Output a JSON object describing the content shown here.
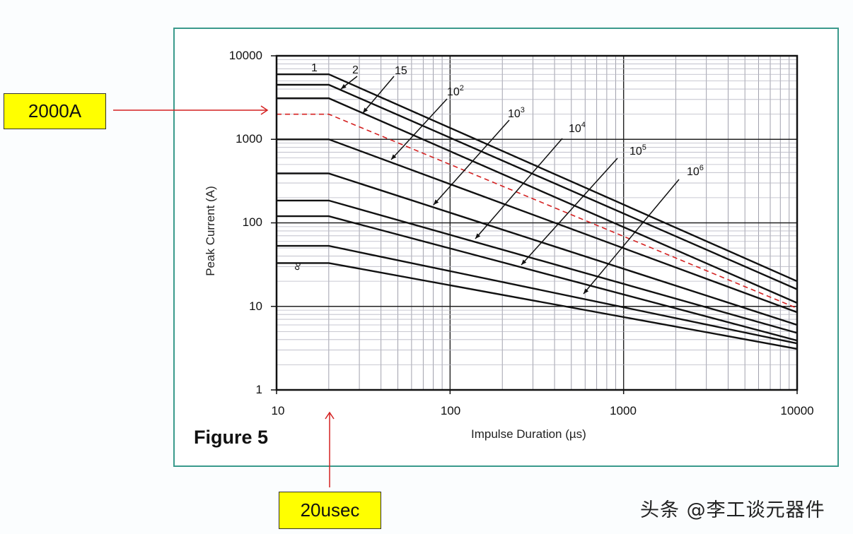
{
  "figure": {
    "label": "Figure 5",
    "x_axis_label": "Impulse Duration (µs)",
    "y_axis_label": "Peak Current (A)"
  },
  "callouts": {
    "current": "2000A",
    "duration": "20usec"
  },
  "watermark": "头条 @李工谈元器件",
  "colors": {
    "frame": "#3a9a8c",
    "callout_bg": "#ffff00",
    "arrow": "#d42020",
    "dashed_curve": "#d42020",
    "curves": "#111111"
  },
  "chart_data": {
    "type": "line",
    "title": "Figure 5",
    "xlabel": "Impulse Duration (µs)",
    "ylabel": "Peak Current (A)",
    "xscale": "log",
    "yscale": "log",
    "xlim": [
      10,
      10000
    ],
    "ylim": [
      1,
      10000
    ],
    "x_ticks": [
      "10",
      "100",
      "1000",
      "10000"
    ],
    "y_ticks": [
      "1",
      "10",
      "100",
      "1000",
      "10000"
    ],
    "grid": true,
    "knee_x": 20,
    "series": [
      {
        "name": "1",
        "points": [
          [
            10,
            6000
          ],
          [
            20,
            6000
          ],
          [
            10000,
            20
          ]
        ]
      },
      {
        "name": "2",
        "points": [
          [
            10,
            4500
          ],
          [
            20,
            4500
          ],
          [
            10000,
            16
          ]
        ]
      },
      {
        "name": "15",
        "points": [
          [
            10,
            3100
          ],
          [
            20,
            3100
          ],
          [
            10000,
            11
          ]
        ]
      },
      {
        "name": "2000A rating (dashed)",
        "style": "dashed-red",
        "points": [
          [
            10,
            2000
          ],
          [
            20,
            2000
          ],
          [
            10000,
            9.5
          ]
        ]
      },
      {
        "name": "10^2",
        "points": [
          [
            10,
            1000
          ],
          [
            20,
            1000
          ],
          [
            10000,
            8.5
          ]
        ]
      },
      {
        "name": "10^3",
        "points": [
          [
            10,
            390
          ],
          [
            20,
            390
          ],
          [
            10000,
            6
          ]
        ]
      },
      {
        "name": "10^4",
        "points": [
          [
            10,
            185
          ],
          [
            20,
            185
          ],
          [
            10000,
            4.8
          ]
        ]
      },
      {
        "name": "10^5",
        "points": [
          [
            10,
            120
          ],
          [
            20,
            120
          ],
          [
            10000,
            3.9
          ]
        ]
      },
      {
        "name": "10^6",
        "points": [
          [
            10,
            53
          ],
          [
            20,
            53
          ],
          [
            10000,
            3.6
          ]
        ]
      },
      {
        "name": "∞",
        "points": [
          [
            10,
            33
          ],
          [
            20,
            33
          ],
          [
            10000,
            3.1
          ]
        ]
      }
    ],
    "annotations": [
      {
        "text": "1",
        "near_series": "1"
      },
      {
        "text": "2",
        "near_series": "2"
      },
      {
        "text": "15",
        "near_series": "15"
      },
      {
        "text": "10^2",
        "near_series": "10^2"
      },
      {
        "text": "10^3",
        "near_series": "10^3"
      },
      {
        "text": "10^4",
        "near_series": "10^4"
      },
      {
        "text": "10^5",
        "near_series": "10^5"
      },
      {
        "text": "10^6",
        "near_series": "10^6"
      },
      {
        "text": "∞",
        "near_series": "∞"
      },
      {
        "text": "2000A",
        "marks_y": 2000
      },
      {
        "text": "20usec",
        "marks_x": 20
      }
    ]
  },
  "curve_labels": {
    "c1": "1",
    "c2": "2",
    "c15": "15",
    "c1e2": "10",
    "c1e2_exp": "2",
    "c1e3": "10",
    "c1e3_exp": "3",
    "c1e4": "10",
    "c1e4_exp": "4",
    "c1e5": "10",
    "c1e5_exp": "5",
    "c1e6": "10",
    "c1e6_exp": "6",
    "cinf": "∞"
  }
}
